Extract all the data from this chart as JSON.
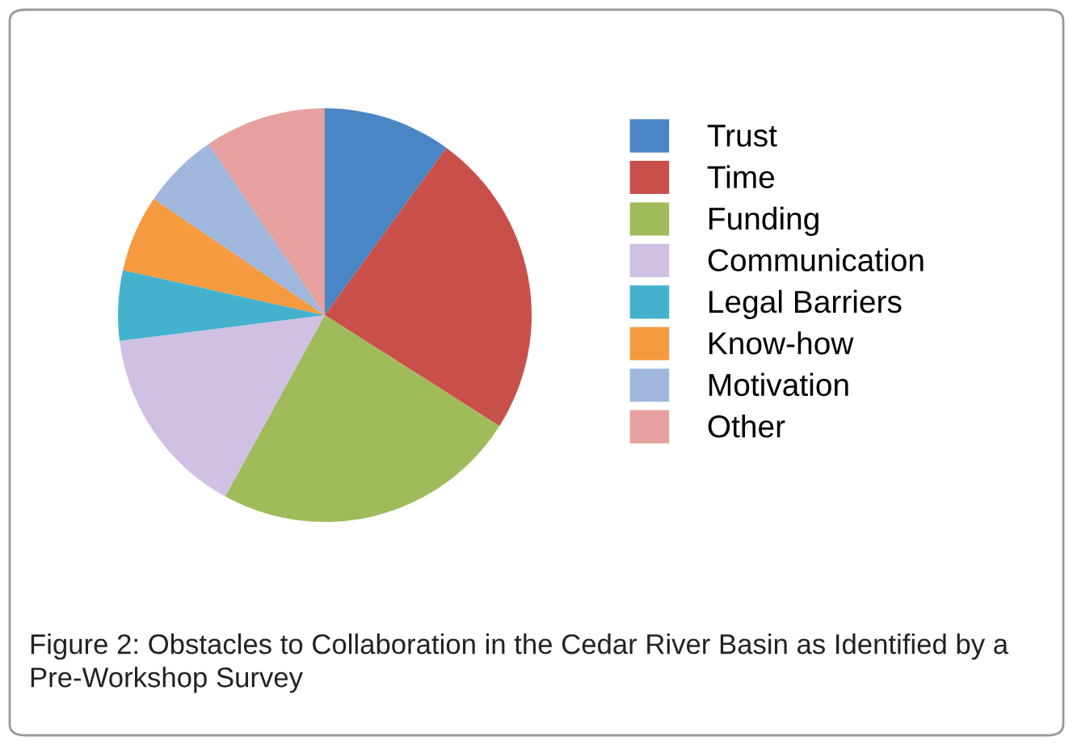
{
  "chart_data": {
    "type": "pie",
    "categories": [
      "Trust",
      "Time",
      "Funding",
      "Communication",
      "Legal Barriers",
      "Know-how",
      "Motivation",
      "Other"
    ],
    "values": [
      10,
      24,
      24,
      15,
      5.5,
      6,
      6,
      9.5
    ],
    "colors": [
      "#4a86c5",
      "#c9504a",
      "#a0bb5a",
      "#cfc0e4",
      "#45b2cd",
      "#f59a3f",
      "#9fb7dd",
      "#e6a09d"
    ],
    "legend": "right",
    "annotations": [
      "Figure 2: Obstacles to Collaboration in the Cedar River Basin as Identified by a Pre-Workshop Survey"
    ]
  }
}
